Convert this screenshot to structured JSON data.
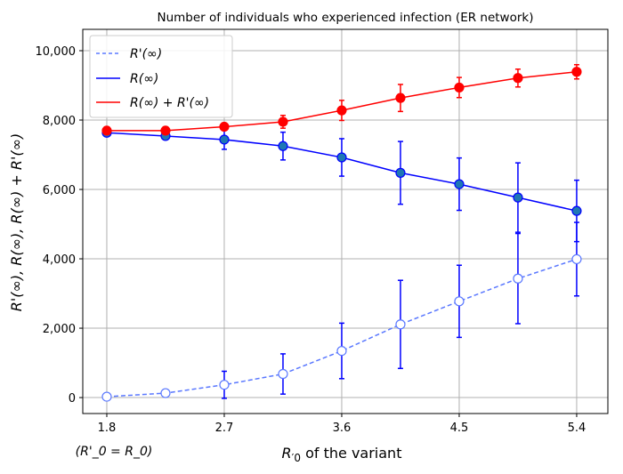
{
  "chart_data": {
    "type": "line",
    "title": "Number of individuals who experienced infection (ER network)",
    "xlabel": "R'_0 of the variant",
    "xlabel_parts": {
      "sym": "R",
      "prime_sub": "′0",
      "rest": " of the variant"
    },
    "xtick_sublabel": "(R'_0 = R_0)",
    "xtick_sublabel_parts": {
      "open": "(",
      "lhs": "R",
      "lhs_sub": "′0",
      "eq": " = ",
      "rhs": "R",
      "rhs_sub": "0",
      "close": ")"
    },
    "ylabel": "R'(∞), R(∞), R(∞) + R'(∞)",
    "xlim": [
      1.616,
      5.639
    ],
    "ylim": [
      -460,
      10615
    ],
    "xticks": [
      1.8,
      2.7,
      3.6,
      4.5,
      5.4
    ],
    "xtick_labels": [
      "1.8",
      "2.7",
      "3.6",
      "4.5",
      "5.4"
    ],
    "yticks": [
      0,
      2000,
      4000,
      6000,
      8000,
      10000
    ],
    "ytick_labels": [
      "0",
      "2,000",
      "4,000",
      "6,000",
      "8,000",
      "10,000"
    ],
    "grid": true,
    "legend_position": "top-left",
    "x": [
      1.8,
      2.25,
      2.7,
      3.15,
      3.6,
      4.05,
      4.5,
      4.95,
      5.4
    ],
    "series": [
      {
        "name": "R'(∞)",
        "color": "#5a78ff",
        "style": "dashed",
        "marker": "open-circle",
        "values": [
          25,
          128,
          368,
          680,
          1345,
          2110,
          2775,
          3430,
          3990
        ],
        "errors": [
          0,
          0,
          390,
          580,
          800,
          1270,
          1040,
          1300,
          1060
        ]
      },
      {
        "name": "R(∞)",
        "color": "#0000ff",
        "style": "solid",
        "marker": "filled-circle",
        "marker_color": "#1f77b4",
        "values": [
          7635,
          7540,
          7437,
          7250,
          6923,
          6478,
          6152,
          5766,
          5381
        ],
        "errors": [
          0,
          0,
          280,
          400,
          540,
          905,
          755,
          1000,
          885
        ]
      },
      {
        "name": "R(∞) + R'(∞)",
        "color": "#ff0000",
        "style": "solid",
        "marker": "filled-circle",
        "values": [
          7695,
          7695,
          7807,
          7950,
          8278,
          8637,
          8938,
          9211,
          9391
        ],
        "errors": [
          0,
          0,
          100,
          185,
          290,
          390,
          290,
          257,
          205
        ]
      }
    ]
  }
}
